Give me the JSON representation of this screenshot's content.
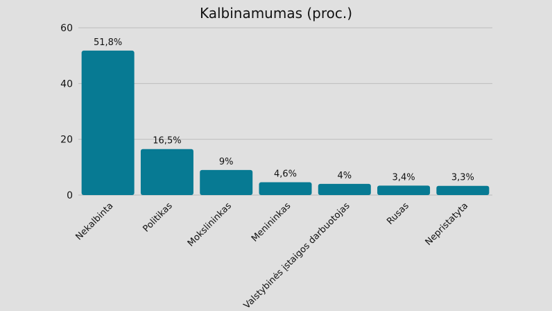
{
  "chart_data": {
    "type": "bar",
    "title": "Kalbinamumas (proc.)",
    "xlabel": "",
    "ylabel": "",
    "categories": [
      "Nekalbinta",
      "Politikas",
      "Mokslininkas",
      "Menininkas",
      "Valstybinės įstaigos darbuotojas",
      "Rusas",
      "Nepristatyta"
    ],
    "values": [
      51.8,
      16.5,
      9,
      4.6,
      4,
      3.4,
      3.3
    ],
    "data_labels": [
      "51,8%",
      "16,5%",
      "9%",
      "4,6%",
      "4%",
      "3,4%",
      "3,3%"
    ],
    "ylim": [
      0,
      60
    ],
    "yticks": [
      0,
      20,
      40,
      60
    ],
    "grid": true,
    "legend": "none",
    "colors": {
      "bar": "#077a93",
      "grid": "#bdbdbd",
      "background": "#e0e0e0",
      "text": "#111111"
    }
  }
}
